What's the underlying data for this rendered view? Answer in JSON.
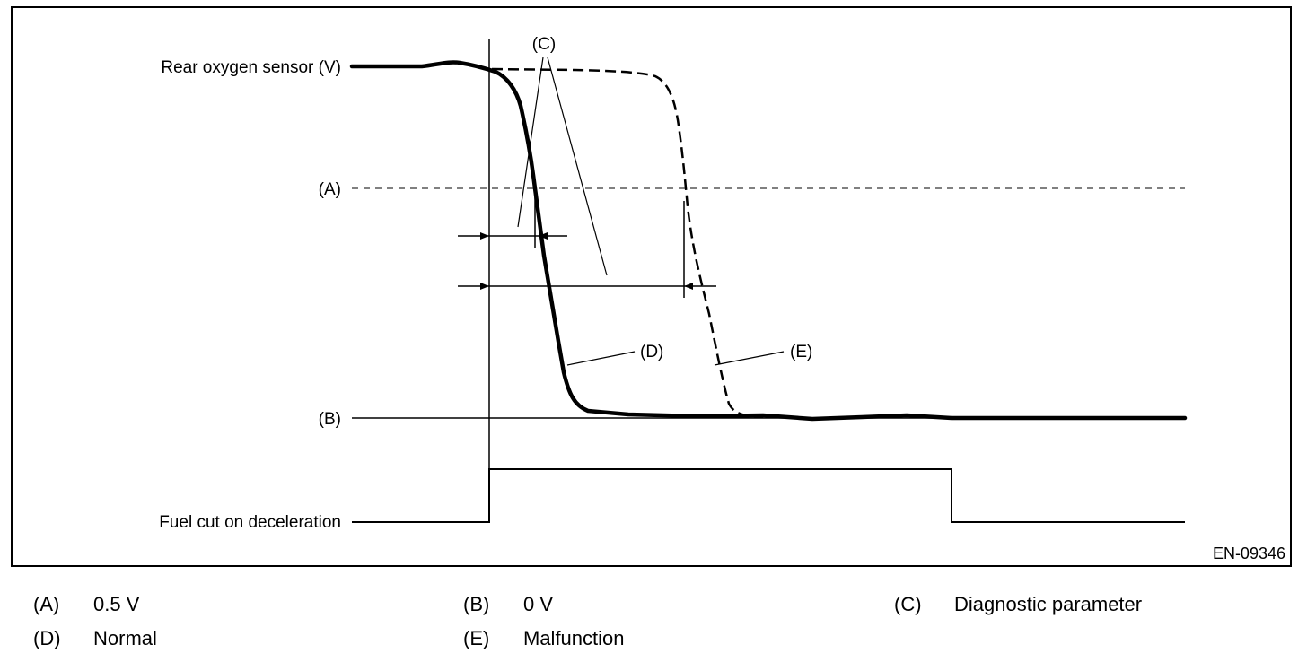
{
  "diagram": {
    "id_code": "EN-09346",
    "labels": {
      "rear_o2": "Rear oxygen sensor (V)",
      "fuel_cut": "Fuel cut on deceleration",
      "a": "(A)",
      "b": "(B)",
      "c": "(C)",
      "d": "(D)",
      "e": "(E)"
    }
  },
  "legend": [
    {
      "key": "(A)",
      "value": "0.5 V"
    },
    {
      "key": "(B)",
      "value": "0 V"
    },
    {
      "key": "(C)",
      "value": "Diagnostic parameter"
    },
    {
      "key": "(D)",
      "value": "Normal"
    },
    {
      "key": "(E)",
      "value": "Malfunction"
    }
  ]
}
